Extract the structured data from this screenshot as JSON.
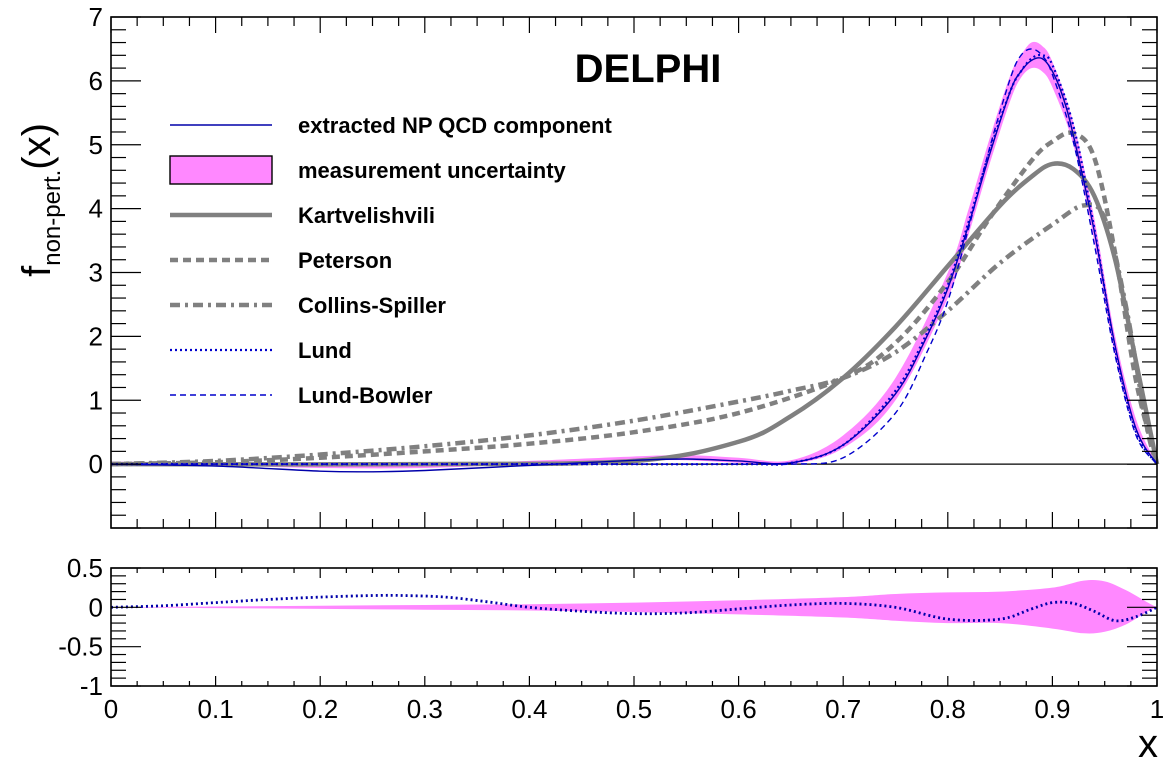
{
  "chart_data": [
    {
      "type": "line",
      "title": "DELPHI",
      "ylabel": "f",
      "ylabel_sub": "non-pert.",
      "ylabel_suffix": "(x)",
      "xlim": [
        0,
        1
      ],
      "ylim": [
        -1,
        7
      ],
      "yticks": [
        "0",
        "1",
        "2",
        "3",
        "4",
        "5",
        "6",
        "7"
      ],
      "grid": false,
      "legend_position": "upper-left",
      "band": {
        "name": "measurement uncertainty",
        "color": "#ff88ff",
        "x": [
          0.0,
          0.1,
          0.2,
          0.3,
          0.4,
          0.5,
          0.55,
          0.6,
          0.65,
          0.7,
          0.75,
          0.8,
          0.82,
          0.84,
          0.86,
          0.87,
          0.88,
          0.89,
          0.9,
          0.92,
          0.94,
          0.96,
          0.98,
          1.0
        ],
        "lower": [
          0.0,
          -0.02,
          -0.06,
          -0.06,
          0.0,
          0.05,
          0.06,
          0.02,
          0.0,
          0.25,
          1.0,
          2.6,
          3.6,
          4.7,
          5.7,
          6.05,
          6.2,
          6.15,
          5.9,
          5.0,
          3.5,
          1.7,
          0.5,
          0.0
        ],
        "upper": [
          0.04,
          0.02,
          -0.02,
          -0.02,
          0.05,
          0.12,
          0.14,
          0.1,
          0.06,
          0.45,
          1.35,
          3.0,
          4.0,
          5.1,
          6.1,
          6.4,
          6.6,
          6.55,
          6.3,
          5.35,
          3.85,
          2.0,
          0.7,
          0.0
        ]
      },
      "series": [
        {
          "name": "extracted NP QCD component",
          "color": "#0000aa",
          "style": "solid",
          "x": [
            0.0,
            0.1,
            0.2,
            0.25,
            0.3,
            0.4,
            0.5,
            0.55,
            0.6,
            0.65,
            0.7,
            0.75,
            0.78,
            0.8,
            0.82,
            0.84,
            0.86,
            0.87,
            0.88,
            0.89,
            0.9,
            0.91,
            0.92,
            0.94,
            0.96,
            0.98,
            1.0
          ],
          "y": [
            0.0,
            -0.03,
            -0.11,
            -0.12,
            -0.1,
            -0.02,
            0.06,
            0.08,
            0.05,
            0.02,
            0.3,
            1.1,
            2.0,
            2.75,
            3.75,
            4.85,
            5.85,
            6.15,
            6.32,
            6.35,
            6.15,
            5.75,
            5.15,
            3.65,
            1.85,
            0.55,
            0.0
          ]
        },
        {
          "name": "Kartvelishvili",
          "color": "#808080",
          "style": "solid-thick",
          "x": [
            0.0,
            0.3,
            0.5,
            0.6,
            0.65,
            0.7,
            0.75,
            0.8,
            0.85,
            0.88,
            0.9,
            0.92,
            0.94,
            0.96,
            0.98,
            1.0
          ],
          "y": [
            0.0,
            0.0,
            0.05,
            0.35,
            0.75,
            1.35,
            2.15,
            3.1,
            4.05,
            4.5,
            4.7,
            4.62,
            4.2,
            3.2,
            1.6,
            0.0
          ]
        },
        {
          "name": "Peterson",
          "color": "#808080",
          "style": "dashed",
          "x": [
            0.0,
            0.1,
            0.2,
            0.3,
            0.4,
            0.5,
            0.6,
            0.7,
            0.75,
            0.8,
            0.84,
            0.88,
            0.9,
            0.92,
            0.94,
            0.96,
            0.98,
            1.0
          ],
          "y": [
            0.0,
            0.03,
            0.1,
            0.2,
            0.32,
            0.5,
            0.8,
            1.35,
            1.9,
            2.85,
            3.85,
            4.75,
            5.05,
            5.18,
            4.8,
            3.3,
            1.3,
            0.0
          ]
        },
        {
          "name": "Collins-Spiller",
          "color": "#808080",
          "style": "dashdot",
          "x": [
            0.0,
            0.1,
            0.2,
            0.3,
            0.4,
            0.5,
            0.6,
            0.65,
            0.7,
            0.75,
            0.8,
            0.85,
            0.9,
            0.93,
            0.95,
            0.97,
            0.99,
            1.0
          ],
          "y": [
            0.0,
            0.05,
            0.15,
            0.28,
            0.45,
            0.68,
            0.98,
            1.15,
            1.35,
            1.75,
            2.4,
            3.15,
            3.75,
            4.05,
            3.85,
            2.5,
            0.6,
            0.0
          ]
        },
        {
          "name": "Lund",
          "color": "#0000cc",
          "style": "dotted",
          "x": [
            0.0,
            0.2,
            0.4,
            0.6,
            0.65,
            0.7,
            0.75,
            0.78,
            0.8,
            0.82,
            0.84,
            0.86,
            0.87,
            0.88,
            0.89,
            0.9,
            0.92,
            0.94,
            0.96,
            0.98,
            1.0
          ],
          "y": [
            0.0,
            0.0,
            0.0,
            0.0,
            0.02,
            0.3,
            1.15,
            2.05,
            2.8,
            3.8,
            4.9,
            5.85,
            6.15,
            6.35,
            6.4,
            6.25,
            5.3,
            3.7,
            1.8,
            0.5,
            0.0
          ]
        },
        {
          "name": "Lund-Bowler",
          "color": "#0000cc",
          "style": "dashed-thin",
          "x": [
            0.0,
            0.2,
            0.4,
            0.6,
            0.65,
            0.7,
            0.75,
            0.78,
            0.8,
            0.82,
            0.84,
            0.86,
            0.87,
            0.88,
            0.89,
            0.9,
            0.92,
            0.94,
            0.96,
            0.98,
            1.0
          ],
          "y": [
            0.0,
            0.0,
            0.0,
            0.0,
            0.0,
            0.1,
            0.8,
            1.75,
            2.55,
            3.7,
            4.95,
            6.05,
            6.4,
            6.5,
            6.4,
            6.1,
            5.05,
            3.45,
            1.7,
            0.45,
            0.0
          ]
        }
      ]
    },
    {
      "type": "line",
      "xlabel": "x",
      "xlim": [
        0,
        1
      ],
      "ylim": [
        -1,
        0.5
      ],
      "xticks": [
        "0",
        "0.1",
        "0.2",
        "0.3",
        "0.4",
        "0.5",
        "0.6",
        "0.7",
        "0.8",
        "0.9",
        "1"
      ],
      "yticks": [
        "-1",
        "-0.5",
        "0",
        "0.5"
      ],
      "grid": false,
      "band": {
        "color": "#ff88ff",
        "x": [
          0.0,
          0.1,
          0.2,
          0.3,
          0.4,
          0.5,
          0.6,
          0.7,
          0.75,
          0.8,
          0.85,
          0.9,
          0.93,
          0.95,
          0.97,
          0.99,
          1.0
        ],
        "lower": [
          0.0,
          -0.01,
          -0.02,
          -0.03,
          -0.04,
          -0.06,
          -0.09,
          -0.13,
          -0.17,
          -0.2,
          -0.2,
          -0.27,
          -0.33,
          -0.31,
          -0.22,
          -0.06,
          0.0
        ],
        "upper": [
          0.0,
          0.01,
          0.02,
          0.03,
          0.04,
          0.06,
          0.09,
          0.13,
          0.17,
          0.19,
          0.2,
          0.25,
          0.34,
          0.33,
          0.22,
          0.07,
          0.0
        ]
      },
      "series": [
        {
          "color": "#0000aa",
          "style": "dotted",
          "x": [
            0.0,
            0.05,
            0.1,
            0.15,
            0.2,
            0.25,
            0.28,
            0.32,
            0.36,
            0.4,
            0.45,
            0.5,
            0.55,
            0.6,
            0.65,
            0.7,
            0.75,
            0.8,
            0.85,
            0.88,
            0.9,
            0.92,
            0.94,
            0.96,
            0.98,
            1.0
          ],
          "y": [
            0.0,
            0.02,
            0.06,
            0.1,
            0.13,
            0.15,
            0.15,
            0.13,
            0.07,
            0.0,
            -0.05,
            -0.08,
            -0.07,
            -0.02,
            0.03,
            0.05,
            0.0,
            -0.15,
            -0.15,
            -0.02,
            0.06,
            0.05,
            -0.05,
            -0.17,
            -0.12,
            0.0
          ]
        }
      ]
    }
  ]
}
